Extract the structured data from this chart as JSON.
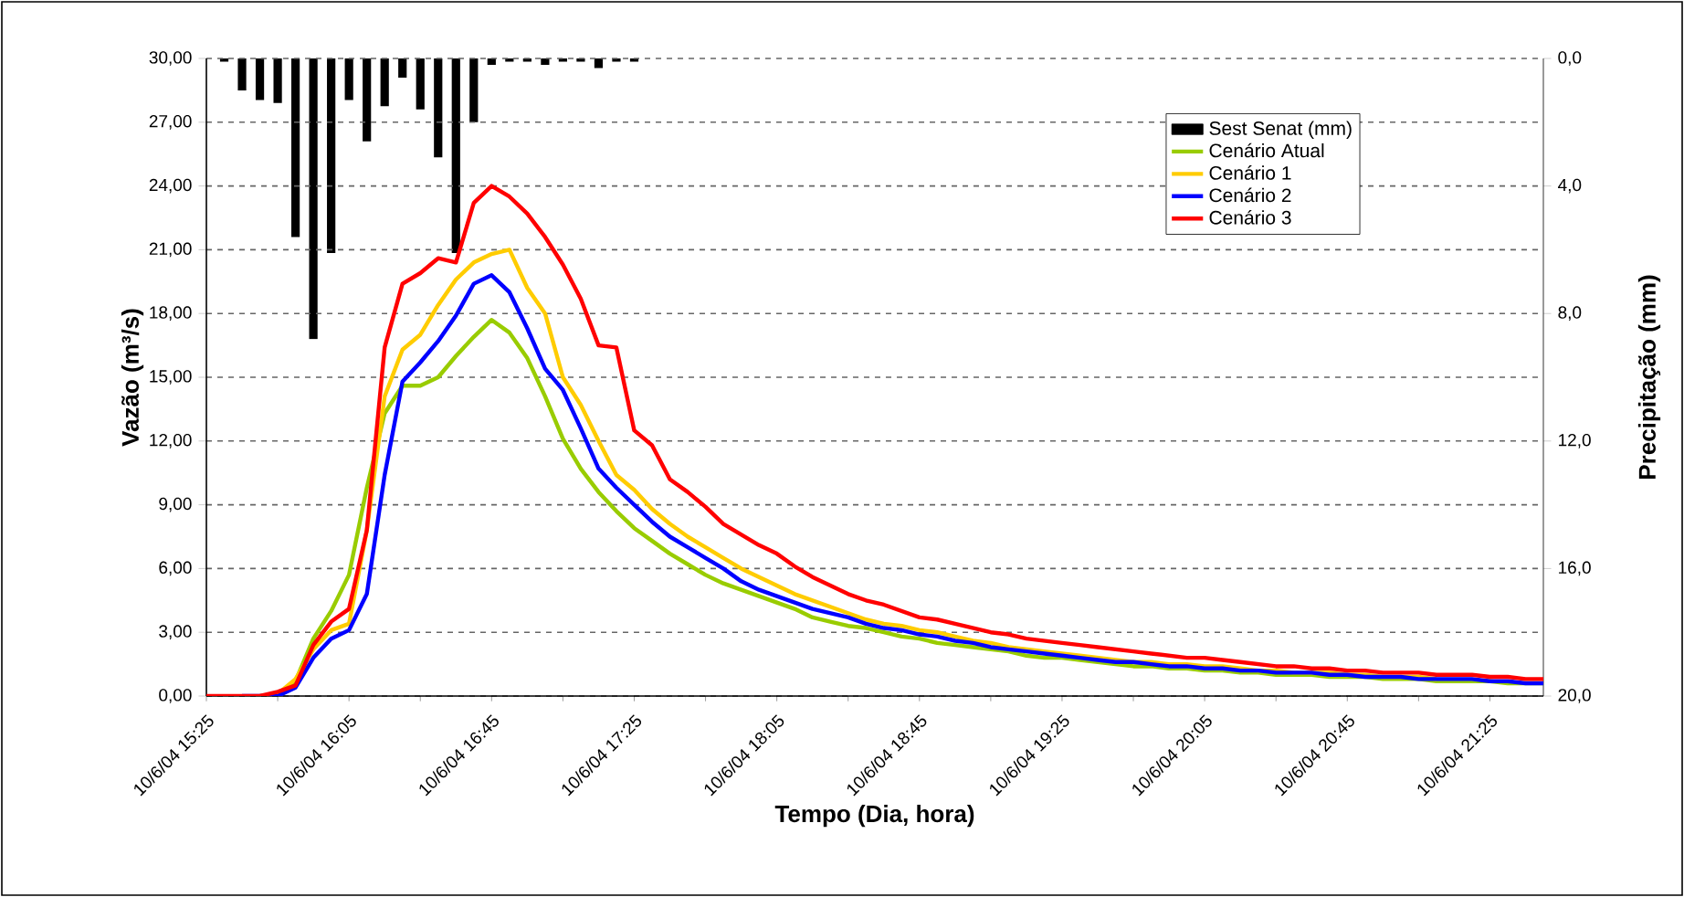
{
  "chart_data": {
    "type": "line",
    "categories": [
      "10/6/04 15:25",
      null,
      null,
      null,
      null,
      null,
      null,
      null,
      "10/6/04 16:05",
      null,
      null,
      null,
      null,
      null,
      null,
      null,
      "10/6/04 16:45",
      null,
      null,
      null,
      null,
      null,
      null,
      null,
      "10/6/04 17:25",
      null,
      null,
      null,
      null,
      null,
      null,
      null,
      "10/6/04 18:05",
      null,
      null,
      null,
      null,
      null,
      null,
      null,
      "10/6/04 18:45",
      null,
      null,
      null,
      null,
      null,
      null,
      null,
      "10/6/04 19:25",
      null,
      null,
      null,
      null,
      null,
      null,
      null,
      "10/6/04 20:05",
      null,
      null,
      null,
      null,
      null,
      null,
      null,
      "10/6/04 20:45",
      null,
      null,
      null,
      null,
      null,
      null,
      null,
      "10/6/04 21:25",
      null,
      null,
      null
    ],
    "xlabel": "Tempo (Dia, hora)",
    "ylabel": "Vazão (m³/s)",
    "y2label": "Precipitação (mm)",
    "ylim": [
      0,
      30
    ],
    "yticks": [
      {
        "value": 0,
        "label": "0,00"
      },
      {
        "value": 3,
        "label": "3,00"
      },
      {
        "value": 6,
        "label": "6,00"
      },
      {
        "value": 9,
        "label": "9,00"
      },
      {
        "value": 12,
        "label": "12,00"
      },
      {
        "value": 15,
        "label": "15,00"
      },
      {
        "value": 18,
        "label": "18,00"
      },
      {
        "value": 21,
        "label": "21,00"
      },
      {
        "value": 24,
        "label": "24,00"
      },
      {
        "value": 27,
        "label": "27,00"
      },
      {
        "value": 30,
        "label": "30,00"
      }
    ],
    "y2lim": [
      20,
      0
    ],
    "y2ticks": [
      {
        "value": 0,
        "label": "0,0"
      },
      {
        "value": 4,
        "label": "4,0"
      },
      {
        "value": 8,
        "label": "8,0"
      },
      {
        "value": 12,
        "label": "12,0"
      },
      {
        "value": 16,
        "label": "16,0"
      },
      {
        "value": 20,
        "label": "20,0"
      }
    ],
    "grid": "y",
    "legend": "top right",
    "marker": "none",
    "line_style": "solid",
    "series": [
      {
        "name": "Sest Senat (mm)",
        "type": "bar",
        "axis": "y2",
        "color": "#000000",
        "values": [
          0,
          0.1,
          1.0,
          1.3,
          1.4,
          5.6,
          8.8,
          6.1,
          1.3,
          2.6,
          1.5,
          0.6,
          1.6,
          3.1,
          6.1,
          2.0,
          0.2,
          0.1,
          0.1,
          0.2,
          0.1,
          0.1,
          0.3,
          0.1,
          0.1,
          0,
          0,
          0,
          0,
          0,
          0,
          0,
          0,
          0,
          0,
          0,
          0,
          0,
          0,
          0,
          0,
          0,
          0,
          0,
          0,
          0,
          0,
          0,
          0,
          0,
          0,
          0,
          0,
          0,
          0,
          0,
          0,
          0,
          0,
          0,
          0,
          0,
          0,
          0,
          0,
          0,
          0,
          0,
          0,
          0,
          0,
          0,
          0,
          0,
          0,
          0
        ]
      },
      {
        "name": "Cenário Atual",
        "color": "#99cc00",
        "values": [
          null,
          null,
          null,
          null,
          0.1,
          0.7,
          2.7,
          4.0,
          5.7,
          9.8,
          13.3,
          14.6,
          14.6,
          15.0,
          16.0,
          16.9,
          17.7,
          17.1,
          15.9,
          14.1,
          12.1,
          10.7,
          9.6,
          8.7,
          7.9,
          7.3,
          6.7,
          6.2,
          5.7,
          5.3,
          5.0,
          4.7,
          4.4,
          4.1,
          3.7,
          3.5,
          3.3,
          3.2,
          3.0,
          2.8,
          2.7,
          2.5,
          2.4,
          2.3,
          2.2,
          2.1,
          1.9,
          1.8,
          1.8,
          1.7,
          1.6,
          1.5,
          1.4,
          1.4,
          1.3,
          1.3,
          1.2,
          1.2,
          1.1,
          1.1,
          1.0,
          1.0,
          1.0,
          0.9,
          0.9,
          0.9,
          0.8,
          0.8,
          0.8,
          0.7,
          0.7,
          0.7,
          0.7,
          0.6,
          0.6,
          0.6
        ]
      },
      {
        "name": "Cenário 1",
        "color": "#ffcc00",
        "values": [
          null,
          null,
          null,
          0,
          0.1,
          0.8,
          2.2,
          3.1,
          3.4,
          7.8,
          14.1,
          16.3,
          17.0,
          18.4,
          19.6,
          20.4,
          20.8,
          21.0,
          19.2,
          18.0,
          15.0,
          13.7,
          12.0,
          10.4,
          9.7,
          8.8,
          8.1,
          7.5,
          7.0,
          6.5,
          6.0,
          5.6,
          5.2,
          4.8,
          4.5,
          4.2,
          3.9,
          3.6,
          3.4,
          3.3,
          3.1,
          3.0,
          2.8,
          2.6,
          2.5,
          2.3,
          2.2,
          2.1,
          2.0,
          1.9,
          1.8,
          1.7,
          1.6,
          1.6,
          1.5,
          1.5,
          1.4,
          1.4,
          1.3,
          1.2,
          1.2,
          1.1,
          1.1,
          1.1,
          1.0,
          1.0,
          0.9,
          0.9,
          0.9,
          0.8,
          null,
          null,
          null,
          null,
          null,
          null
        ]
      },
      {
        "name": "Cenário 2",
        "color": "#0000ff",
        "values": [
          null,
          null,
          0,
          0,
          0,
          0.4,
          1.8,
          2.7,
          3.1,
          4.8,
          10.4,
          14.8,
          15.7,
          16.7,
          17.9,
          19.4,
          19.8,
          19.0,
          17.3,
          15.4,
          14.4,
          12.6,
          10.7,
          9.8,
          9.0,
          8.2,
          7.5,
          7.0,
          6.5,
          6.0,
          5.4,
          5.0,
          4.7,
          4.4,
          4.1,
          3.9,
          3.7,
          3.4,
          3.2,
          3.1,
          2.9,
          2.8,
          2.6,
          2.5,
          2.3,
          2.2,
          2.1,
          2.0,
          1.9,
          1.8,
          1.7,
          1.6,
          1.6,
          1.5,
          1.4,
          1.4,
          1.3,
          1.3,
          1.2,
          1.2,
          1.1,
          1.1,
          1.1,
          1.0,
          1.0,
          0.9,
          0.9,
          0.9,
          0.8,
          0.8,
          0.8,
          0.8,
          0.7,
          0.7,
          0.6,
          0.6
        ]
      },
      {
        "name": "Cenário 3",
        "color": "#ff0000",
        "values": [
          0,
          0,
          0,
          0,
          0.2,
          0.5,
          2.4,
          3.5,
          4.1,
          7.8,
          16.4,
          19.4,
          19.9,
          20.6,
          20.4,
          23.2,
          24.0,
          23.5,
          22.7,
          21.6,
          20.3,
          18.7,
          16.5,
          16.4,
          12.5,
          11.8,
          10.2,
          9.6,
          8.9,
          8.1,
          7.6,
          7.1,
          6.7,
          6.1,
          5.6,
          5.2,
          4.8,
          4.5,
          4.3,
          4.0,
          3.7,
          3.6,
          3.4,
          3.2,
          3.0,
          2.9,
          2.7,
          2.6,
          2.5,
          2.4,
          2.3,
          2.2,
          2.1,
          2.0,
          1.9,
          1.8,
          1.8,
          1.7,
          1.6,
          1.5,
          1.4,
          1.4,
          1.3,
          1.3,
          1.2,
          1.2,
          1.1,
          1.1,
          1.1,
          1.0,
          1.0,
          1.0,
          0.9,
          0.9,
          0.8,
          0.8
        ]
      }
    ]
  }
}
